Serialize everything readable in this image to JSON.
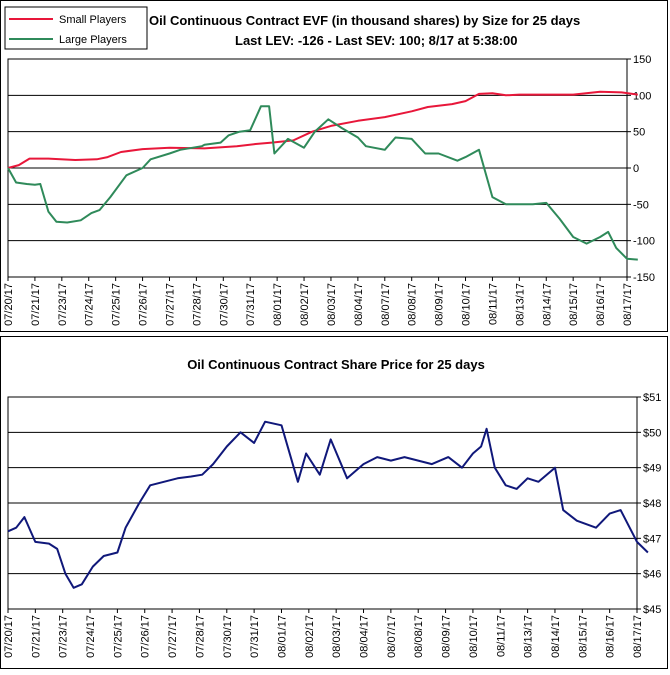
{
  "chart_data": [
    {
      "type": "line",
      "title": "Oil Continuous Contract EVF (in thousand shares) by Size for 25 days",
      "subtitle": "Last LEV: -126 - Last SEV: 100; 8/17 at 5:38:00",
      "ylim": [
        -150,
        150
      ],
      "yticks": [
        150,
        100,
        50,
        0,
        -50,
        -100,
        -150
      ],
      "grid": true,
      "legend_position": "top-left",
      "categories": [
        "07/20/17",
        "07/21/17",
        "07/23/17",
        "07/24/17",
        "07/25/17",
        "07/26/17",
        "07/27/17",
        "07/28/17",
        "07/30/17",
        "07/31/17",
        "08/01/17",
        "08/02/17",
        "08/03/17",
        "08/04/17",
        "08/07/17",
        "08/08/17",
        "08/09/17",
        "08/10/17",
        "08/11/17",
        "08/13/17",
        "08/14/17",
        "08/15/17",
        "08/16/17",
        "08/17/17"
      ],
      "series": [
        {
          "name": "Small Players",
          "color": "#e8173a",
          "x": [
            0,
            0.4,
            0.8,
            1.5,
            2.5,
            3.3,
            3.7,
            4.2,
            5,
            6,
            7.3,
            8.5,
            9.2,
            9.8,
            10.6,
            11.3,
            12,
            13,
            14,
            15,
            15.6,
            16.5,
            17,
            17.5,
            18,
            18.5,
            19,
            20,
            21,
            22,
            22.8,
            23.4
          ],
          "y": [
            0,
            4,
            13,
            13,
            11,
            12,
            15,
            22,
            26,
            28,
            27,
            30,
            33,
            35,
            38,
            50,
            58,
            65,
            70,
            78,
            84,
            88,
            92,
            102,
            103,
            100,
            101,
            101,
            101,
            105,
            104,
            101
          ]
        },
        {
          "name": "Large Players",
          "color": "#2f8a5a",
          "x": [
            0,
            0.3,
            0.7,
            1,
            1.2,
            1.5,
            1.8,
            2.2,
            2.7,
            3.1,
            3.4,
            3.8,
            4.4,
            5,
            5.3,
            6,
            6.4,
            7.2,
            7.3,
            7.9,
            8.2,
            8.6,
            9,
            9.4,
            9.7,
            9.9,
            10.4,
            11,
            11.4,
            11.9,
            12.4,
            13,
            13.3,
            14,
            14.4,
            15,
            15.5,
            16,
            16.7,
            17,
            17.5,
            18,
            18.5,
            19,
            19.5,
            20,
            20.5,
            21,
            21.5,
            22,
            22.3,
            22.6,
            23,
            23.4
          ],
          "y": [
            0,
            -20,
            -22,
            -23,
            -22,
            -60,
            -74,
            -75,
            -72,
            -62,
            -58,
            -40,
            -10,
            0,
            12,
            20,
            25,
            30,
            32,
            35,
            45,
            50,
            52,
            85,
            85,
            20,
            40,
            28,
            50,
            67,
            55,
            42,
            30,
            25,
            42,
            40,
            20,
            20,
            10,
            15,
            25,
            -40,
            -50,
            -50,
            -50,
            -48,
            -70,
            -95,
            -104,
            -95,
            -88,
            -110,
            -125,
            -126
          ]
        }
      ]
    },
    {
      "type": "line",
      "title": "Oil Continuous Contract Share Price for 25 days",
      "ylim": [
        45,
        51
      ],
      "yticks": [
        "$51",
        "$50",
        "$49",
        "$48",
        "$47",
        "$46",
        "$45"
      ],
      "grid": true,
      "categories": [
        "07/20/17",
        "07/21/17",
        "07/23/17",
        "07/24/17",
        "07/25/17",
        "07/26/17",
        "07/27/17",
        "07/28/17",
        "07/30/17",
        "07/31/17",
        "08/01/17",
        "08/02/17",
        "08/03/17",
        "08/04/17",
        "08/07/17",
        "08/08/17",
        "08/09/17",
        "08/10/17",
        "08/11/17",
        "08/13/17",
        "08/14/17",
        "08/15/17",
        "08/16/17",
        "08/17/17"
      ],
      "series": [
        {
          "name": "",
          "color": "#10187a",
          "x": [
            0,
            0.3,
            0.6,
            1,
            1.5,
            1.8,
            2.1,
            2.4,
            2.7,
            3.1,
            3.5,
            4,
            4.3,
            4.8,
            5.2,
            5.7,
            6.2,
            6.7,
            7.1,
            7.5,
            8,
            8.5,
            9,
            9.4,
            10,
            10.6,
            10.9,
            11.4,
            11.8,
            12.4,
            13,
            13.5,
            14,
            14.5,
            15,
            15.5,
            16.1,
            16.6,
            17,
            17.3,
            17.5,
            17.8,
            18.2,
            18.6,
            19,
            19.4,
            20,
            20.3,
            20.8,
            21.5,
            22,
            22.4,
            23,
            23.4
          ],
          "y": [
            47.2,
            47.3,
            47.6,
            46.9,
            46.85,
            46.7,
            46.0,
            45.6,
            45.7,
            46.2,
            46.5,
            46.6,
            47.3,
            48.0,
            48.5,
            48.6,
            48.7,
            48.75,
            48.8,
            49.1,
            49.6,
            50.0,
            49.7,
            50.3,
            50.2,
            48.6,
            49.4,
            48.8,
            49.8,
            48.7,
            49.1,
            49.3,
            49.2,
            49.3,
            49.2,
            49.1,
            49.3,
            49.0,
            49.4,
            49.6,
            50.1,
            49.0,
            48.5,
            48.4,
            48.7,
            48.6,
            49.0,
            47.8,
            47.5,
            47.3,
            47.7,
            47.8,
            46.9,
            46.6
          ]
        }
      ]
    }
  ]
}
